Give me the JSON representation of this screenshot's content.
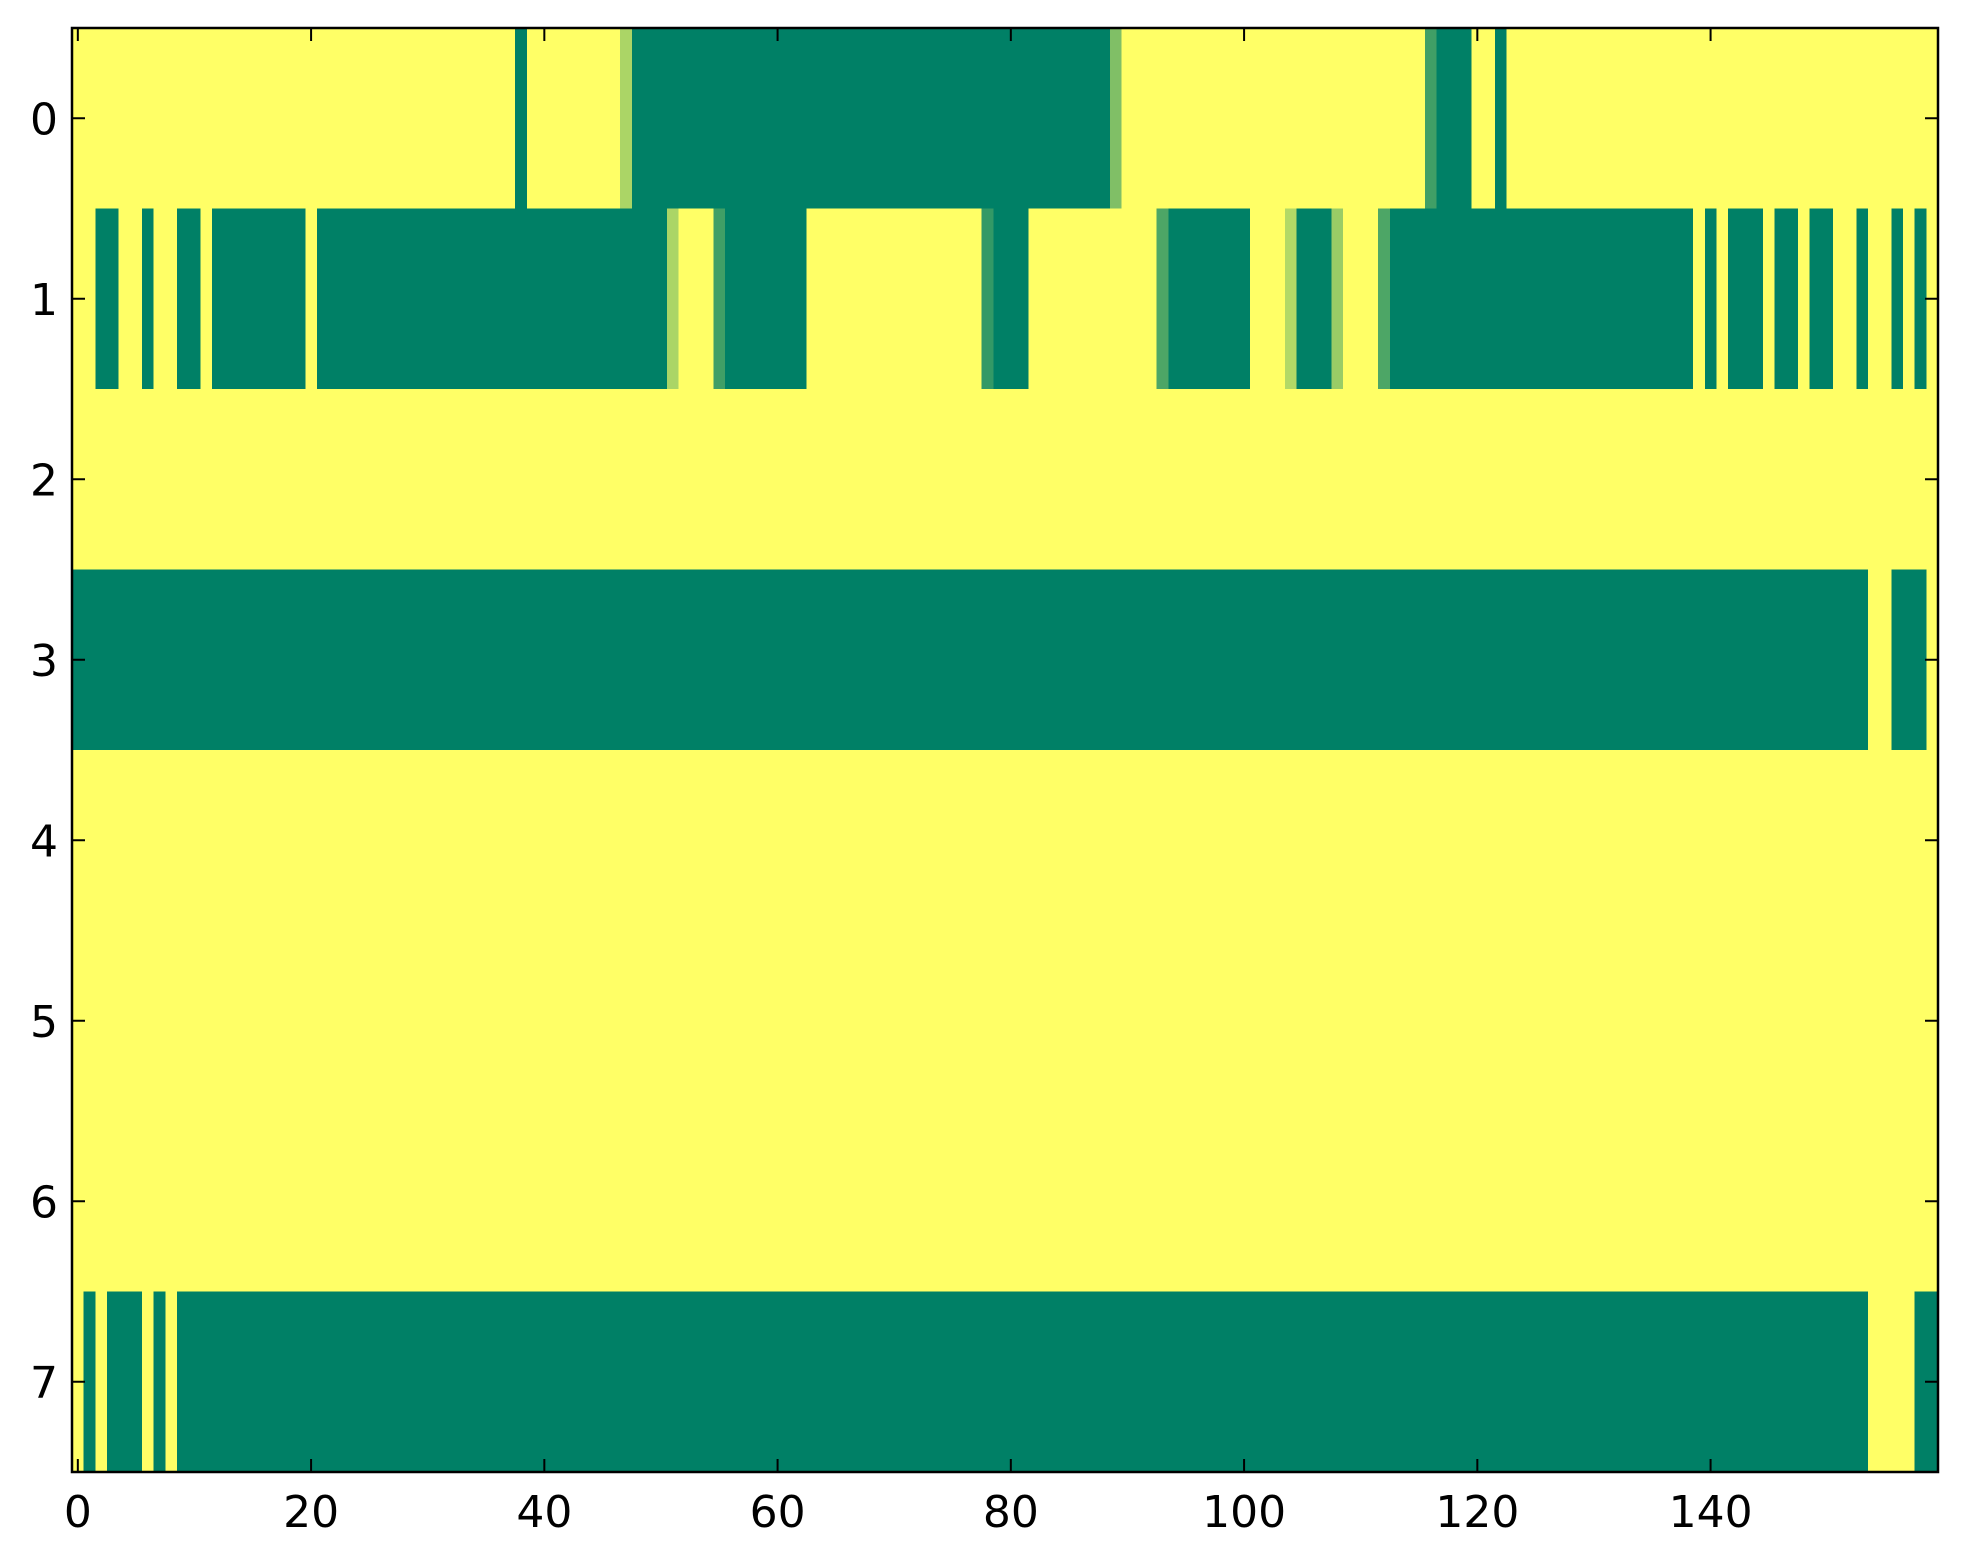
{
  "chart_data": {
    "type": "heatmap",
    "colormap": "summer",
    "xlim": [
      -0.5,
      159.5
    ],
    "ylim": [
      7.5,
      -0.5
    ],
    "xticks": [
      0,
      20,
      40,
      60,
      80,
      100,
      120,
      140
    ],
    "yticks": [
      0,
      1,
      2,
      3,
      4,
      5,
      6,
      7
    ],
    "z": [
      [
        1,
        1,
        1,
        1,
        1,
        1,
        1,
        1,
        1,
        1,
        1,
        1,
        1,
        1,
        1,
        1,
        1,
        1,
        1,
        1,
        1,
        1,
        1,
        1,
        1,
        1,
        1,
        1,
        1,
        1,
        1,
        1,
        1,
        1,
        1,
        1,
        1,
        1,
        0,
        1,
        1,
        1,
        1,
        1,
        1,
        1,
        1,
        0.67,
        0,
        0,
        0,
        0,
        0,
        0,
        0,
        0,
        0,
        0,
        0,
        0,
        0,
        0,
        0,
        0,
        0,
        0,
        0,
        0,
        0,
        0,
        0,
        0,
        0,
        0,
        0,
        0,
        0,
        0,
        0,
        0,
        0,
        0,
        0,
        0,
        0,
        0,
        0,
        0,
        0,
        0.5,
        1,
        1,
        1,
        1,
        1,
        1,
        1,
        1,
        1,
        1,
        1,
        1,
        1,
        1,
        1,
        1,
        1,
        1,
        1,
        1,
        1,
        1,
        1,
        1,
        1,
        1,
        0.25,
        0,
        0,
        0,
        1,
        1,
        0,
        1,
        1,
        1,
        1,
        1,
        1,
        1,
        1,
        1,
        1,
        1,
        1,
        1,
        1,
        1,
        1,
        1,
        1,
        1,
        1,
        1,
        1,
        1,
        1,
        1,
        1,
        1,
        1,
        1,
        1,
        1,
        1,
        1,
        1,
        1,
        1,
        1
      ],
      [
        1,
        1,
        0,
        0,
        1,
        1,
        0,
        1,
        1,
        0,
        0,
        1,
        0,
        0,
        0,
        0,
        0,
        0,
        0,
        0,
        1,
        0,
        0,
        0,
        0,
        0,
        0,
        0,
        0,
        0,
        0,
        0,
        0,
        0,
        0,
        0,
        0,
        0,
        0,
        0,
        0,
        0,
        0,
        0,
        0,
        0,
        0,
        0,
        0,
        0,
        0,
        0.67,
        1,
        1,
        1,
        0.25,
        0,
        0,
        0,
        0,
        0,
        0,
        0,
        1,
        1,
        1,
        1,
        1,
        1,
        1,
        1,
        1,
        1,
        1,
        1,
        1,
        1,
        1,
        0.2,
        0,
        0,
        0,
        1,
        1,
        1,
        1,
        1,
        1,
        1,
        1,
        1,
        1,
        1,
        0.3,
        0,
        0,
        0,
        0,
        0,
        0,
        0,
        1,
        1,
        1,
        0.7,
        0,
        0,
        0,
        0.6,
        1,
        1,
        1,
        0.3,
        0,
        0,
        0,
        0,
        0,
        0,
        0,
        0,
        0,
        0,
        0,
        0,
        0,
        0,
        0,
        0,
        0,
        0,
        0,
        0,
        0,
        0,
        0,
        0,
        0,
        0,
        1,
        0,
        1,
        0,
        0,
        0,
        1,
        0,
        0,
        1,
        0,
        0,
        1,
        1,
        0,
        1,
        1,
        0,
        1,
        0,
        1
      ],
      [
        1,
        1,
        1,
        1,
        1,
        1,
        1,
        1,
        1,
        1,
        1,
        1,
        1,
        1,
        1,
        1,
        1,
        1,
        1,
        1,
        1,
        1,
        1,
        1,
        1,
        1,
        1,
        1,
        1,
        1,
        1,
        1,
        1,
        1,
        1,
        1,
        1,
        1,
        1,
        1,
        1,
        1,
        1,
        1,
        1,
        1,
        1,
        1,
        1,
        1,
        1,
        1,
        1,
        1,
        1,
        1,
        1,
        1,
        1,
        1,
        1,
        1,
        1,
        1,
        1,
        1,
        1,
        1,
        1,
        1,
        1,
        1,
        1,
        1,
        1,
        1,
        1,
        1,
        1,
        1,
        1,
        1,
        1,
        1,
        1,
        1,
        1,
        1,
        1,
        1,
        1,
        1,
        1,
        1,
        1,
        1,
        1,
        1,
        1,
        1,
        1,
        1,
        1,
        1,
        1,
        1,
        1,
        1,
        1,
        1,
        1,
        1,
        1,
        1,
        1,
        1,
        1,
        1,
        1,
        1,
        1,
        1,
        1,
        1,
        1,
        1,
        1,
        1,
        1,
        1,
        1,
        1,
        1,
        1,
        1,
        1,
        1,
        1,
        1,
        1,
        1,
        1,
        1,
        1,
        1,
        1,
        1,
        1,
        1,
        1,
        1,
        1,
        1,
        1,
        1,
        1,
        1,
        1,
        1,
        1
      ],
      [
        0,
        0,
        0,
        0,
        0,
        0,
        0,
        0,
        0,
        0,
        0,
        0,
        0,
        0,
        0,
        0,
        0,
        0,
        0,
        0,
        0,
        0,
        0,
        0,
        0,
        0,
        0,
        0,
        0,
        0,
        0,
        0,
        0,
        0,
        0,
        0,
        0,
        0,
        0,
        0,
        0,
        0,
        0,
        0,
        0,
        0,
        0,
        0,
        0,
        0,
        0,
        0,
        0,
        0,
        0,
        0,
        0,
        0,
        0,
        0,
        0,
        0,
        0,
        0,
        0,
        0,
        0,
        0,
        0,
        0,
        0,
        0,
        0,
        0,
        0,
        0,
        0,
        0,
        0,
        0,
        0,
        0,
        0,
        0,
        0,
        0,
        0,
        0,
        0,
        0,
        0,
        0,
        0,
        0,
        0,
        0,
        0,
        0,
        0,
        0,
        0,
        0,
        0,
        0,
        0,
        0,
        0,
        0,
        0,
        0,
        0,
        0,
        0,
        0,
        0,
        0,
        0,
        0,
        0,
        0,
        0,
        0,
        0,
        0,
        0,
        0,
        0,
        0,
        0,
        0,
        0,
        0,
        0,
        0,
        0,
        0,
        0,
        0,
        0,
        0,
        0,
        0,
        0,
        0,
        0,
        0,
        0,
        0,
        0,
        0,
        0,
        0,
        0,
        0,
        1,
        1,
        0,
        0,
        0,
        1
      ],
      [
        1,
        1,
        1,
        1,
        1,
        1,
        1,
        1,
        1,
        1,
        1,
        1,
        1,
        1,
        1,
        1,
        1,
        1,
        1,
        1,
        1,
        1,
        1,
        1,
        1,
        1,
        1,
        1,
        1,
        1,
        1,
        1,
        1,
        1,
        1,
        1,
        1,
        1,
        1,
        1,
        1,
        1,
        1,
        1,
        1,
        1,
        1,
        1,
        1,
        1,
        1,
        1,
        1,
        1,
        1,
        1,
        1,
        1,
        1,
        1,
        1,
        1,
        1,
        1,
        1,
        1,
        1,
        1,
        1,
        1,
        1,
        1,
        1,
        1,
        1,
        1,
        1,
        1,
        1,
        1,
        1,
        1,
        1,
        1,
        1,
        1,
        1,
        1,
        1,
        1,
        1,
        1,
        1,
        1,
        1,
        1,
        1,
        1,
        1,
        1,
        1,
        1,
        1,
        1,
        1,
        1,
        1,
        1,
        1,
        1,
        1,
        1,
        1,
        1,
        1,
        1,
        1,
        1,
        1,
        1,
        1,
        1,
        1,
        1,
        1,
        1,
        1,
        1,
        1,
        1,
        1,
        1,
        1,
        1,
        1,
        1,
        1,
        1,
        1,
        1,
        1,
        1,
        1,
        1,
        1,
        1,
        1,
        1,
        1,
        1,
        1,
        1,
        1,
        1,
        1,
        1,
        1,
        1,
        1,
        1
      ],
      [
        1,
        1,
        1,
        1,
        1,
        1,
        1,
        1,
        1,
        1,
        1,
        1,
        1,
        1,
        1,
        1,
        1,
        1,
        1,
        1,
        1,
        1,
        1,
        1,
        1,
        1,
        1,
        1,
        1,
        1,
        1,
        1,
        1,
        1,
        1,
        1,
        1,
        1,
        1,
        1,
        1,
        1,
        1,
        1,
        1,
        1,
        1,
        1,
        1,
        1,
        1,
        1,
        1,
        1,
        1,
        1,
        1,
        1,
        1,
        1,
        1,
        1,
        1,
        1,
        1,
        1,
        1,
        1,
        1,
        1,
        1,
        1,
        1,
        1,
        1,
        1,
        1,
        1,
        1,
        1,
        1,
        1,
        1,
        1,
        1,
        1,
        1,
        1,
        1,
        1,
        1,
        1,
        1,
        1,
        1,
        1,
        1,
        1,
        1,
        1,
        1,
        1,
        1,
        1,
        1,
        1,
        1,
        1,
        1,
        1,
        1,
        1,
        1,
        1,
        1,
        1,
        1,
        1,
        1,
        1,
        1,
        1,
        1,
        1,
        1,
        1,
        1,
        1,
        1,
        1,
        1,
        1,
        1,
        1,
        1,
        1,
        1,
        1,
        1,
        1,
        1,
        1,
        1,
        1,
        1,
        1,
        1,
        1,
        1,
        1,
        1,
        1,
        1,
        1,
        1,
        1,
        1,
        1,
        1,
        1
      ],
      [
        1,
        1,
        1,
        1,
        1,
        1,
        1,
        1,
        1,
        1,
        1,
        1,
        1,
        1,
        1,
        1,
        1,
        1,
        1,
        1,
        1,
        1,
        1,
        1,
        1,
        1,
        1,
        1,
        1,
        1,
        1,
        1,
        1,
        1,
        1,
        1,
        1,
        1,
        1,
        1,
        1,
        1,
        1,
        1,
        1,
        1,
        1,
        1,
        1,
        1,
        1,
        1,
        1,
        1,
        1,
        1,
        1,
        1,
        1,
        1,
        1,
        1,
        1,
        1,
        1,
        1,
        1,
        1,
        1,
        1,
        1,
        1,
        1,
        1,
        1,
        1,
        1,
        1,
        1,
        1,
        1,
        1,
        1,
        1,
        1,
        1,
        1,
        1,
        1,
        1,
        1,
        1,
        1,
        1,
        1,
        1,
        1,
        1,
        1,
        1,
        1,
        1,
        1,
        1,
        1,
        1,
        1,
        1,
        1,
        1,
        1,
        1,
        1,
        1,
        1,
        1,
        1,
        1,
        1,
        1,
        1,
        1,
        1,
        1,
        1,
        1,
        1,
        1,
        1,
        1,
        1,
        1,
        1,
        1,
        1,
        1,
        1,
        1,
        1,
        1,
        1,
        1,
        1,
        1,
        1,
        1,
        1,
        1,
        1,
        1,
        1,
        1,
        1,
        1,
        1,
        1,
        1,
        1,
        1,
        1
      ],
      [
        1,
        0,
        1,
        0,
        0,
        0,
        1,
        0,
        1,
        0,
        0,
        0,
        0,
        0,
        0,
        0,
        0,
        0,
        0,
        0,
        0,
        0,
        0,
        0,
        0,
        0,
        0,
        0,
        0,
        0,
        0,
        0,
        0,
        0,
        0,
        0,
        0,
        0,
        0,
        0,
        0,
        0,
        0,
        0,
        0,
        0,
        0,
        0,
        0,
        0,
        0,
        0,
        0,
        0,
        0,
        0,
        0,
        0,
        0,
        0,
        0,
        0,
        0,
        0,
        0,
        0,
        0,
        0,
        0,
        0,
        0,
        0,
        0,
        0,
        0,
        0,
        0,
        0,
        0,
        0,
        0,
        0,
        0,
        0,
        0,
        0,
        0,
        0,
        0,
        0,
        0,
        0,
        0,
        0,
        0,
        0,
        0,
        0,
        0,
        0,
        0,
        0,
        0,
        0,
        0,
        0,
        0,
        0,
        0,
        0,
        0,
        0,
        0,
        0,
        0,
        0,
        0,
        0,
        0,
        0,
        0,
        0,
        0,
        0,
        0,
        0,
        0,
        0,
        0,
        0,
        0,
        0,
        0,
        0,
        0,
        0,
        0,
        0,
        0,
        0,
        0,
        0,
        0,
        0,
        0,
        0,
        0,
        0,
        0,
        0,
        0,
        0,
        0,
        0,
        1,
        1,
        1,
        1,
        0,
        0
      ]
    ]
  }
}
